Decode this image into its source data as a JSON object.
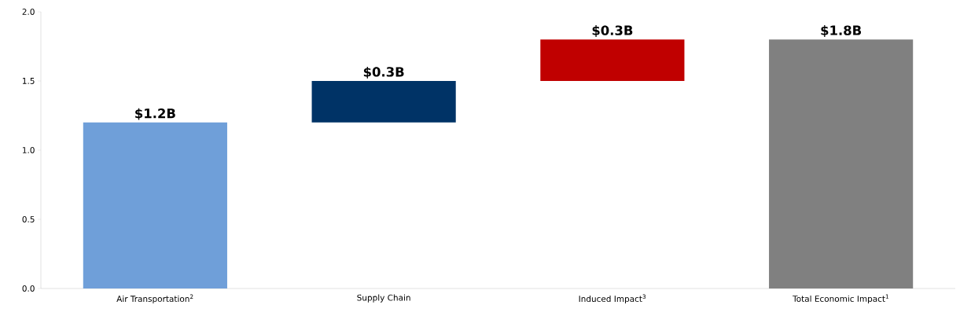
{
  "chart_data": {
    "type": "bar",
    "categories": [
      "Air Transportation$^{2}$",
      "Supply Chain",
      "Induced Impact$^{3}$",
      "Total Economic Impact$^{1}$"
    ],
    "values": [
      1.2,
      0.3,
      0.3,
      1.8
    ],
    "base": [
      0,
      1.2,
      1.5,
      0
    ],
    "colors": [
      "#6f9fd9",
      "#003366",
      "#c00000",
      "#808080"
    ],
    "value_labels": [
      "$1.2B",
      "$0.3B",
      "$0.3B",
      "$1.8B"
    ],
    "ylim": [
      0,
      2
    ],
    "yticks": [
      {
        "value": 0,
        "label": "0.0"
      },
      {
        "value": 0.5,
        "label": "0.5"
      },
      {
        "value": 1,
        "label": "1.0"
      },
      {
        "value": 1.5,
        "label": "1.5"
      },
      {
        "value": 2,
        "label": "2.0"
      }
    ],
    "grid": false
  }
}
